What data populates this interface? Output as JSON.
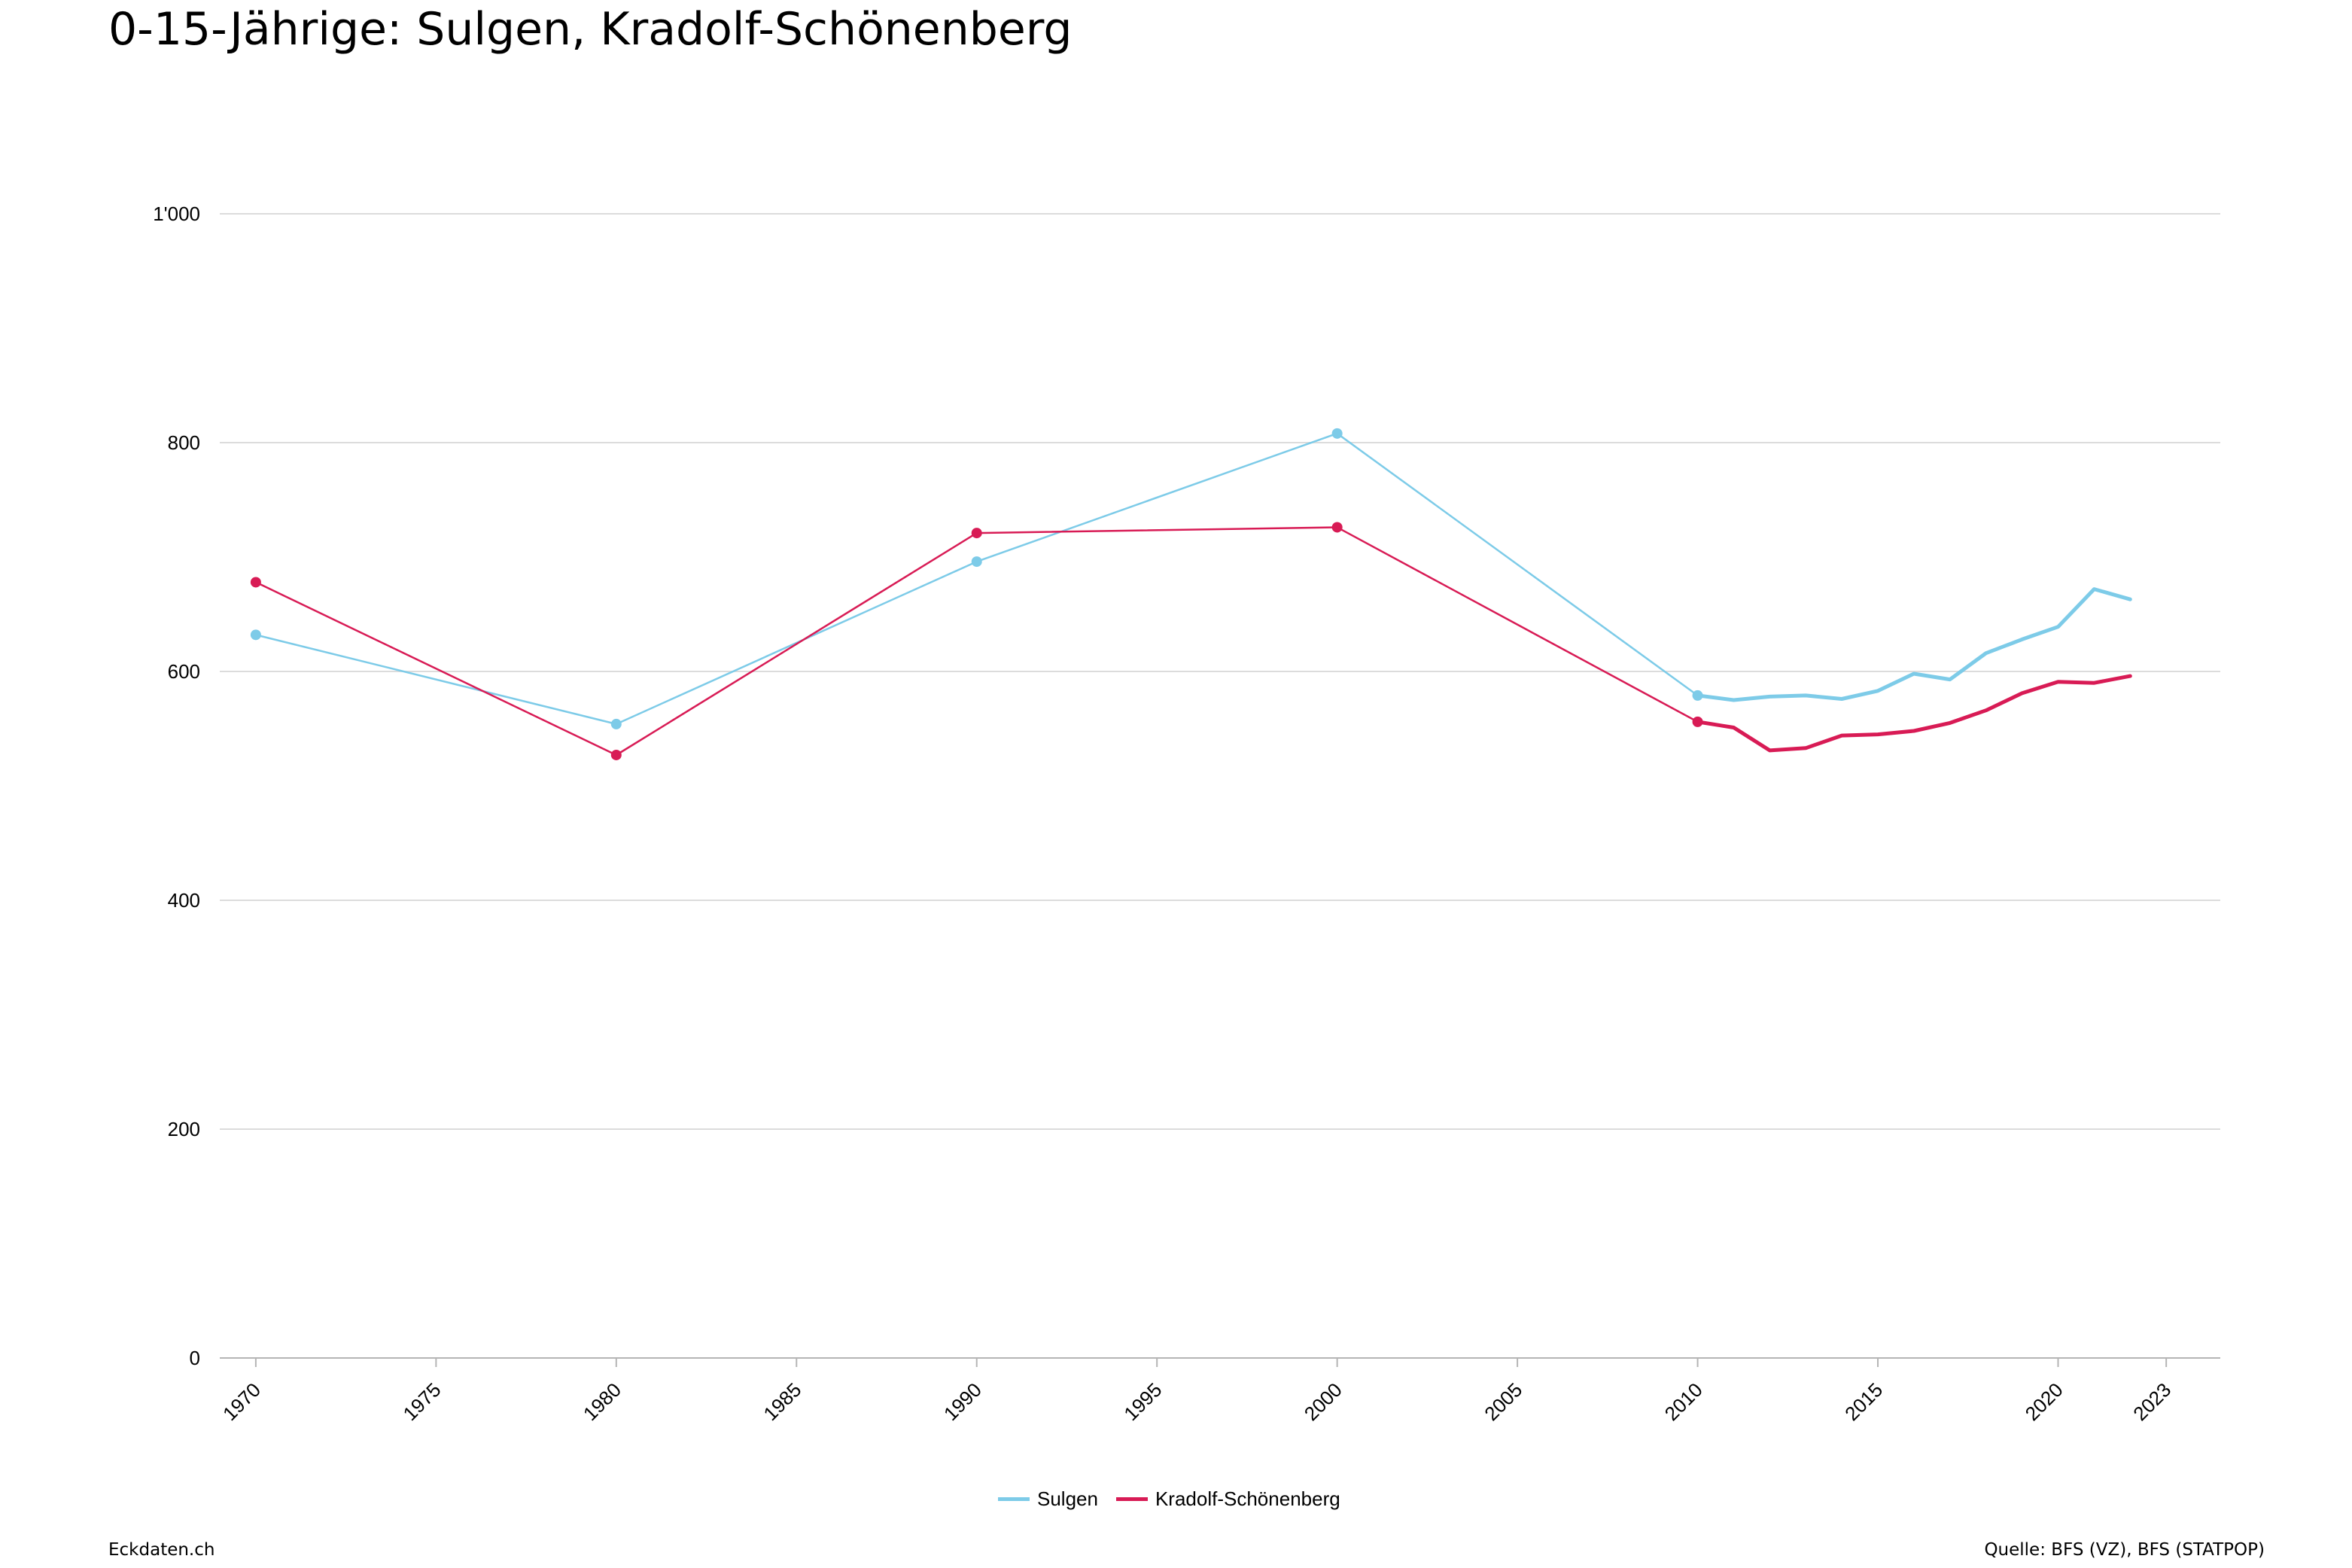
{
  "title": "0-15-Jährige: Sulgen, Kradolf-Schönenberg",
  "footer": {
    "brand": "Eckdaten.ch",
    "source": "Quelle: BFS (VZ), BFS (STATPOP)"
  },
  "chart_data": {
    "type": "line",
    "title": "0-15-Jährige: Sulgen, Kradolf-Schönenberg",
    "xlabel": "",
    "ylabel": "",
    "xlim": [
      1969,
      2024.5
    ],
    "ylim": [
      0,
      1000
    ],
    "y_ticks": [
      0,
      200,
      400,
      600,
      800,
      1000
    ],
    "y_tick_labels": [
      "0",
      "200",
      "400",
      "600",
      "800",
      "1'000"
    ],
    "x_ticks": [
      1970,
      1975,
      1980,
      1985,
      1990,
      1995,
      2000,
      2005,
      2010,
      2015,
      2020,
      2023
    ],
    "x_tick_labels": [
      "1970",
      "1975",
      "1980",
      "1985",
      "1990",
      "1995",
      "2000",
      "2005",
      "2010",
      "2015",
      "2020",
      "2023"
    ],
    "grid": true,
    "legend_position": "bottom-center",
    "series": [
      {
        "name": "Sulgen",
        "color": "#7dcbe8",
        "x": [
          1970,
          1980,
          1990,
          2000,
          2010,
          2011,
          2012,
          2013,
          2014,
          2015,
          2016,
          2017,
          2018,
          2019,
          2020,
          2021,
          2022
        ],
        "y": [
          632,
          554,
          696,
          808,
          579,
          575,
          578,
          579,
          576,
          583,
          598,
          593,
          616,
          628,
          639,
          672,
          663
        ]
      },
      {
        "name": "Kradolf-Schönenberg",
        "color": "#d81b55",
        "x": [
          1970,
          1980,
          1990,
          2000,
          2010,
          2011,
          2012,
          2013,
          2014,
          2015,
          2016,
          2017,
          2018,
          2019,
          2020,
          2021,
          2022
        ],
        "y": [
          678,
          527,
          721,
          726,
          556,
          551,
          531,
          533,
          544,
          545,
          548,
          555,
          566,
          581,
          591,
          590,
          596
        ]
      }
    ]
  }
}
